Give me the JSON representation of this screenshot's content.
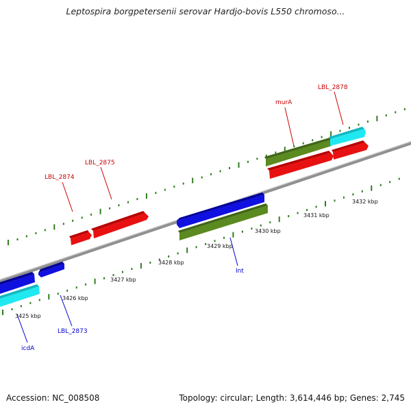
{
  "title": "Leptospira borgpetersenii serovar Hardjo-bovis L550 chromoso...",
  "footer": {
    "accession": "Accession: NC_008508",
    "summary": "Topology: circular; Length: 3,614,446 bp; Genes: 2,745"
  },
  "colors": {
    "backbone": "#808080",
    "tick_green": "#2e7d1e",
    "gene_red": "#e81010",
    "gene_blue": "#1010e0",
    "gene_cyan": "#20e8f0",
    "gene_olive": "#5a8a20",
    "label_red": "#cc0000",
    "label_blue": "#0000cc"
  },
  "ticks": [
    {
      "text": "3425 kbp"
    },
    {
      "text": "3426 kbp"
    },
    {
      "text": "3427 kbp"
    },
    {
      "text": "3428 kbp"
    },
    {
      "text": "3429 kbp"
    },
    {
      "text": "3430 kbp"
    },
    {
      "text": "3431 kbp"
    },
    {
      "text": "3432 kbp"
    }
  ],
  "gene_labels": {
    "murA": "murA",
    "lbl2878": "LBL_2878",
    "lbl2875": "LBL_2875",
    "lbl2874": "LBL_2874",
    "int": "Int",
    "lbl2873": "LBL_2873",
    "icdA": "icdA"
  }
}
